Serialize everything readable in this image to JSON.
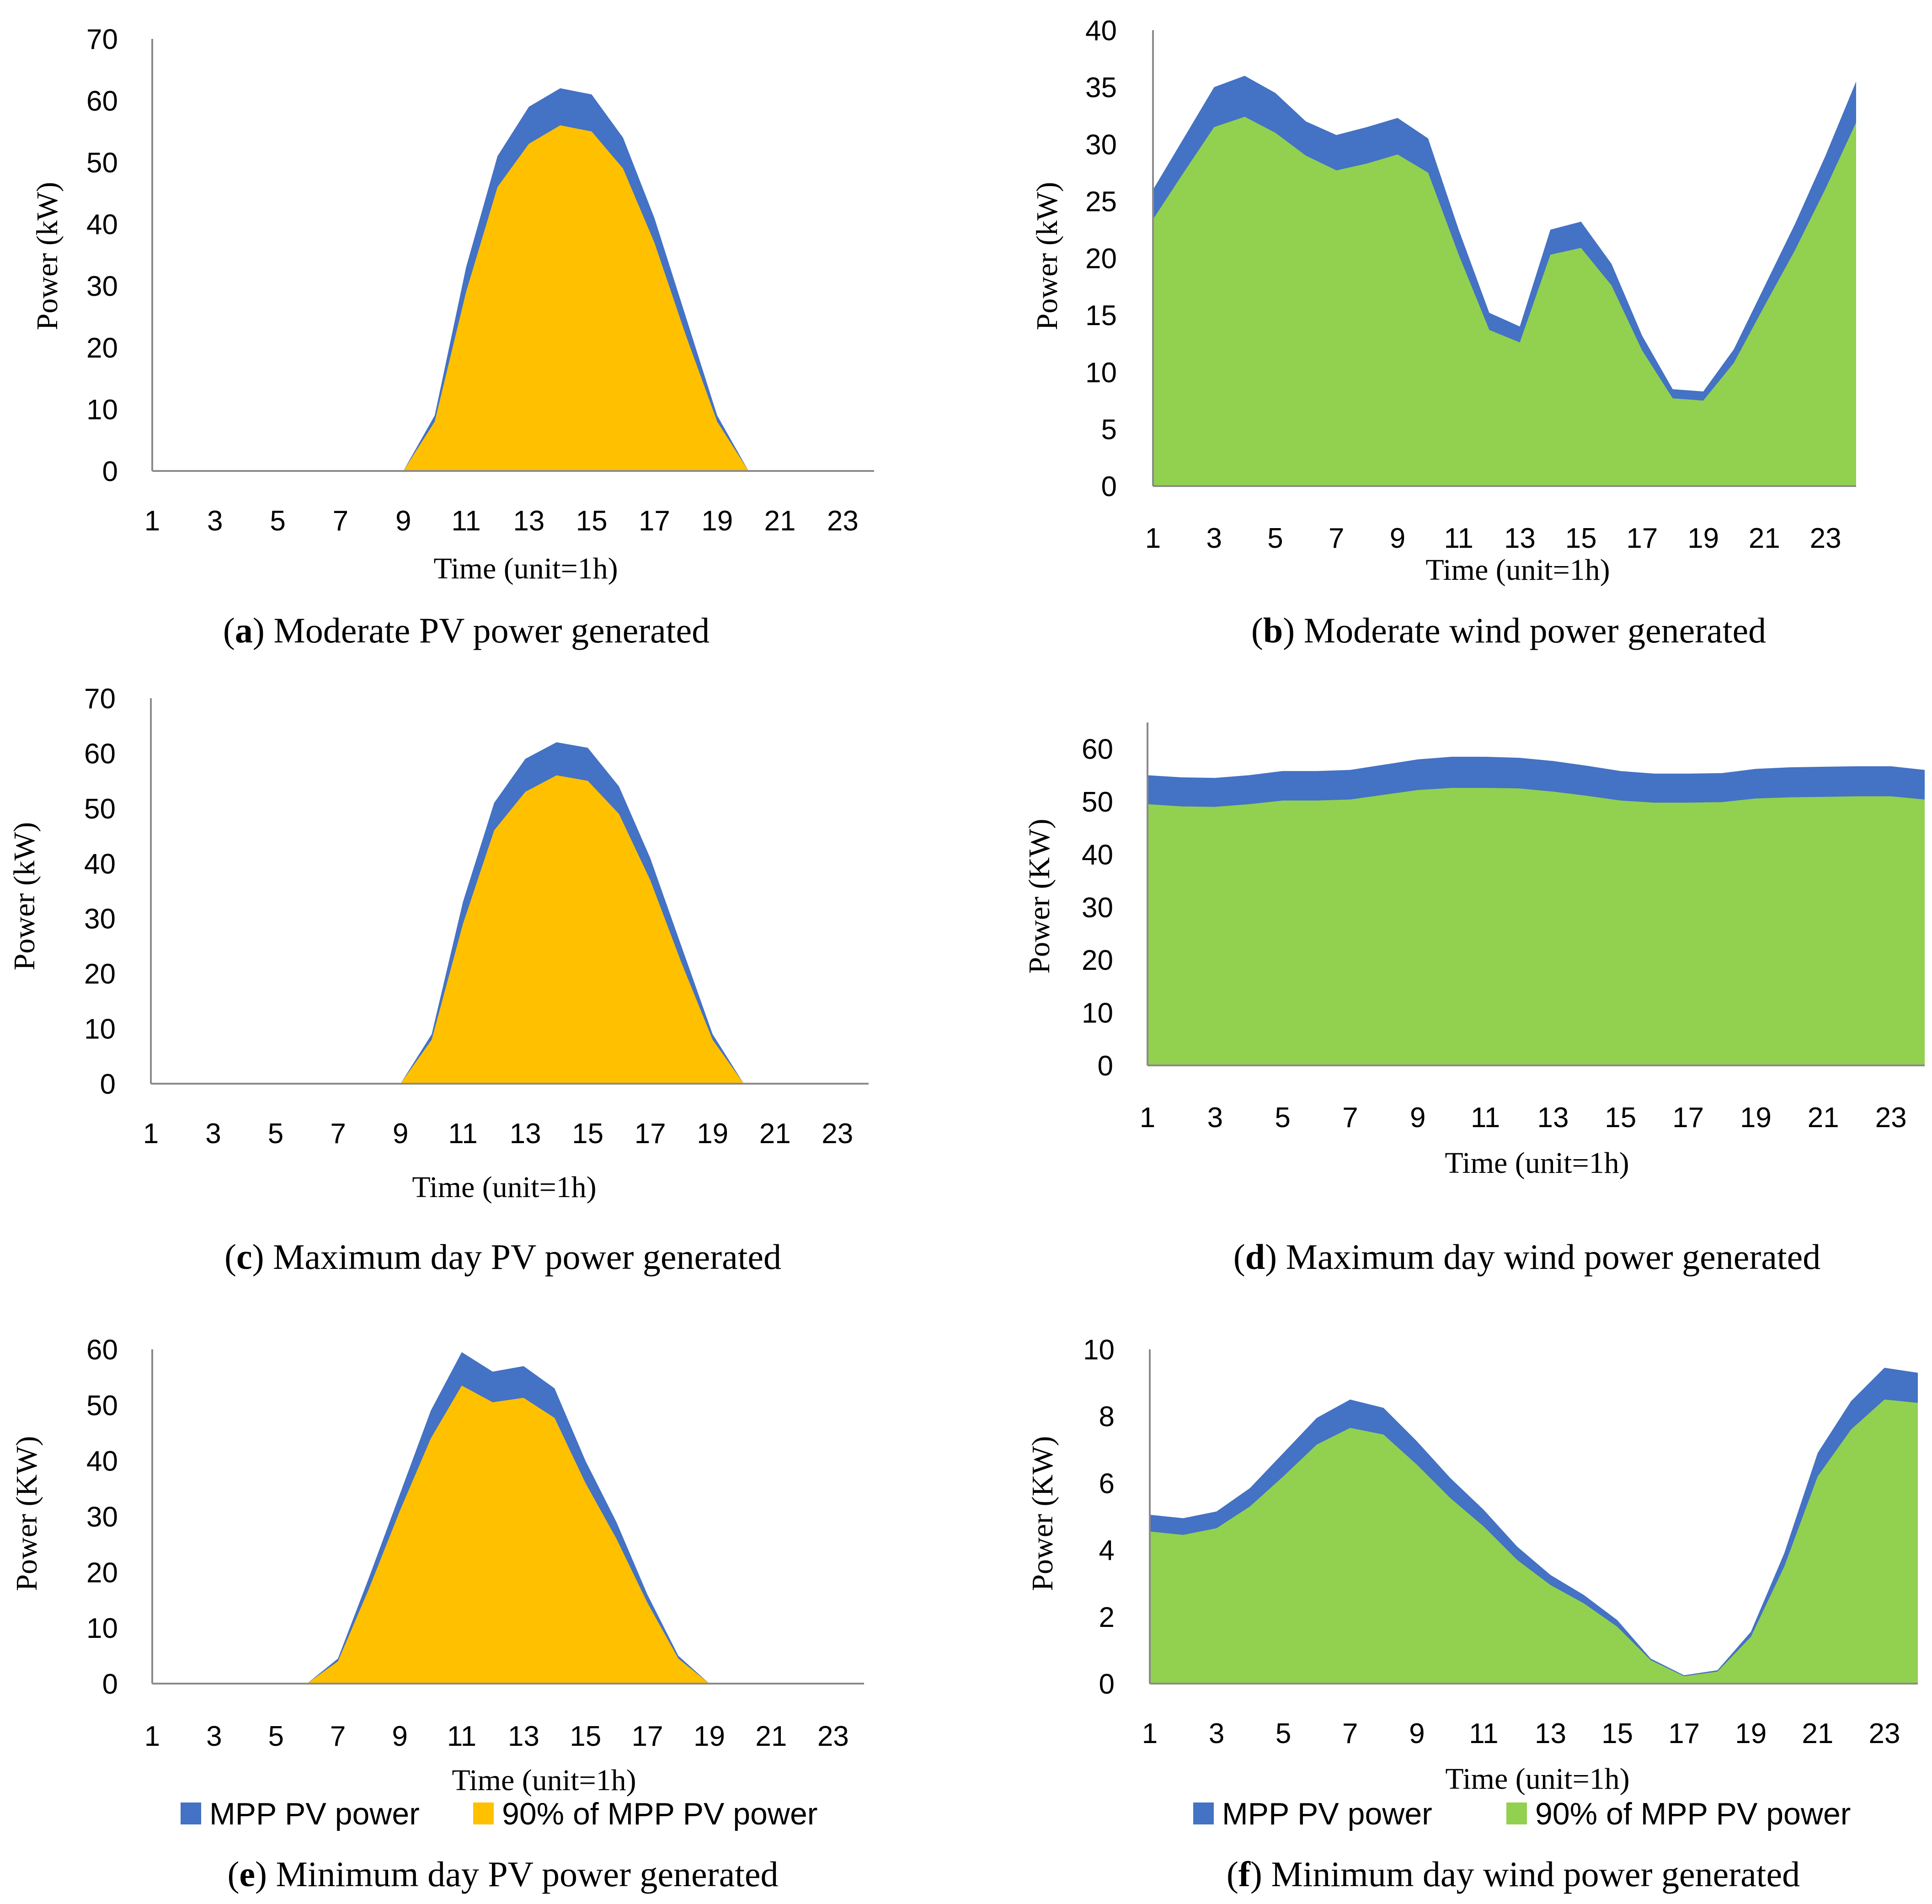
{
  "colors": {
    "mpp": "#4472c4",
    "pv_area": "#ffc000",
    "wind_area": "#92d050",
    "axis": "#8a8a8a"
  },
  "legend": {
    "mpp_label": "MPP PV power",
    "ninety_label": "90% of MPP PV power"
  },
  "chart_data": [
    {
      "id": "a",
      "type": "area",
      "caption_letter": "a",
      "caption_text": " Moderate PV power generated",
      "title": "",
      "xlabel": "Time (unit=1h)",
      "ylabel": "Power (kW)",
      "ylim": [
        0,
        70
      ],
      "yticks": [
        0,
        10,
        20,
        30,
        40,
        50,
        60,
        70
      ],
      "xticks": [
        1,
        3,
        5,
        7,
        9,
        11,
        13,
        15,
        17,
        19,
        21,
        23
      ],
      "x": [
        1,
        2,
        3,
        4,
        5,
        6,
        7,
        8,
        9,
        10,
        11,
        12,
        13,
        14,
        15,
        16,
        17,
        18,
        19,
        20,
        21,
        22,
        23,
        24
      ],
      "series": [
        {
          "name": "MPP PV power",
          "color": "mpp",
          "values": [
            0,
            0,
            0,
            0,
            0,
            0,
            0,
            0,
            0,
            9,
            33,
            51,
            59,
            62,
            61,
            54,
            41,
            25,
            9,
            0,
            0,
            0,
            0,
            0
          ]
        },
        {
          "name": "90% of MPP PV power",
          "color": "pv_area",
          "values": [
            0,
            0,
            0,
            0,
            0,
            0,
            0,
            0,
            0,
            8,
            29,
            46,
            53,
            56,
            55,
            49,
            37,
            22,
            8,
            0,
            0,
            0,
            0,
            0
          ]
        }
      ]
    },
    {
      "id": "b",
      "type": "area",
      "caption_letter": "b",
      "caption_text": " Moderate wind power generated",
      "title": "",
      "xlabel": "Time (unit=1h)",
      "ylabel": "Power (kW)",
      "ylim": [
        0,
        40
      ],
      "yticks": [
        0,
        5,
        10,
        15,
        20,
        25,
        30,
        35,
        40
      ],
      "xticks": [
        1,
        3,
        5,
        7,
        9,
        11,
        13,
        15,
        17,
        19,
        21,
        23
      ],
      "x": [
        1,
        2,
        3,
        4,
        5,
        6,
        7,
        8,
        9,
        10,
        11,
        12,
        13,
        14,
        15,
        16,
        17,
        18,
        19,
        20,
        21,
        22,
        23,
        24
      ],
      "series": [
        {
          "name": "MPP PV power",
          "color": "mpp",
          "values": [
            26,
            30.5,
            35,
            36,
            34.5,
            32,
            30.8,
            31.5,
            32.3,
            30.5,
            22.5,
            15.2,
            14,
            22.5,
            23.2,
            19.5,
            13.2,
            8.5,
            8.3,
            12,
            17.5,
            23,
            29,
            35.5
          ]
        },
        {
          "name": "90% of MPP PV power",
          "color": "wind_area",
          "values": [
            23.4,
            27.5,
            31.5,
            32.4,
            31,
            29,
            27.7,
            28.3,
            29.1,
            27.5,
            20.3,
            13.7,
            12.6,
            20.3,
            20.9,
            17.6,
            11.9,
            7.7,
            7.5,
            10.8,
            15.8,
            20.7,
            26.1,
            31.9
          ]
        }
      ]
    },
    {
      "id": "c",
      "type": "area",
      "caption_letter": "c",
      "caption_text": " Maximum day PV power generated",
      "title": "",
      "xlabel": "Time (unit=1h)",
      "ylabel": "Power (kW)",
      "ylim": [
        0,
        70
      ],
      "yticks": [
        0,
        10,
        20,
        30,
        40,
        50,
        60,
        70
      ],
      "xticks": [
        1,
        3,
        5,
        7,
        9,
        11,
        13,
        15,
        17,
        19,
        21,
        23
      ],
      "x": [
        1,
        2,
        3,
        4,
        5,
        6,
        7,
        8,
        9,
        10,
        11,
        12,
        13,
        14,
        15,
        16,
        17,
        18,
        19,
        20,
        21,
        22,
        23,
        24
      ],
      "series": [
        {
          "name": "MPP PV power",
          "color": "mpp",
          "values": [
            0,
            0,
            0,
            0,
            0,
            0,
            0,
            0,
            0,
            9,
            33,
            51,
            59,
            62,
            61,
            54,
            41,
            25,
            9,
            0,
            0,
            0,
            0,
            0
          ]
        },
        {
          "name": "90% of MPP PV power",
          "color": "pv_area",
          "values": [
            0,
            0,
            0,
            0,
            0,
            0,
            0,
            0,
            0,
            8,
            29,
            46,
            53,
            56,
            55,
            49,
            37,
            22,
            8,
            0,
            0,
            0,
            0,
            0
          ]
        }
      ]
    },
    {
      "id": "d",
      "type": "area",
      "caption_letter": "d",
      "caption_text": " Maximum day wind power generated",
      "title": "",
      "xlabel": "Time (unit=1h)",
      "ylabel": "Power (KW)",
      "ylim": [
        0,
        65
      ],
      "yticks": [
        0,
        10,
        20,
        30,
        40,
        50,
        60
      ],
      "xticks": [
        1,
        3,
        5,
        7,
        9,
        11,
        13,
        15,
        17,
        19,
        21,
        23
      ],
      "x": [
        1,
        2,
        3,
        4,
        5,
        6,
        7,
        8,
        9,
        10,
        11,
        12,
        13,
        14,
        15,
        16,
        17,
        18,
        19,
        20,
        21,
        22,
        23,
        24
      ],
      "series": [
        {
          "name": "MPP PV power",
          "color": "mpp",
          "values": [
            55,
            54.6,
            54.5,
            55,
            55.8,
            55.8,
            56,
            57,
            58,
            58.5,
            58.5,
            58.3,
            57.7,
            56.8,
            55.8,
            55.3,
            55.3,
            55.4,
            56.2,
            56.5,
            56.6,
            56.7,
            56.7,
            56
          ]
        },
        {
          "name": "90% of MPP PV power",
          "color": "wind_area",
          "values": [
            49.5,
            49.1,
            49,
            49.5,
            50.2,
            50.2,
            50.4,
            51.3,
            52.2,
            52.6,
            52.6,
            52.5,
            51.9,
            51.1,
            50.2,
            49.8,
            49.8,
            49.9,
            50.6,
            50.8,
            50.9,
            51,
            51,
            50.4
          ]
        }
      ]
    },
    {
      "id": "e",
      "type": "area",
      "caption_letter": "e",
      "caption_text": " Minimum day PV power generated",
      "title": "",
      "xlabel": "Time (unit=1h)",
      "ylabel": "Power (KW)",
      "ylim": [
        0,
        60
      ],
      "yticks": [
        0,
        10,
        20,
        30,
        40,
        50,
        60
      ],
      "xticks": [
        1,
        3,
        5,
        7,
        9,
        11,
        13,
        15,
        17,
        19,
        21,
        23
      ],
      "x": [
        1,
        2,
        3,
        4,
        5,
        6,
        7,
        8,
        9,
        10,
        11,
        12,
        13,
        14,
        15,
        16,
        17,
        18,
        19,
        20,
        21,
        22,
        23,
        24
      ],
      "series": [
        {
          "name": "MPP PV power",
          "color": "mpp",
          "values": [
            0,
            0,
            0,
            0,
            0,
            0,
            4.5,
            19,
            34,
            49,
            59.5,
            56,
            57,
            53,
            40,
            29,
            16,
            5,
            0,
            0,
            0,
            0,
            0,
            0
          ]
        },
        {
          "name": "90% of MPP PV power",
          "color": "pv_area",
          "values": [
            0,
            0,
            0,
            0,
            0,
            0,
            4,
            17,
            31,
            44,
            53.5,
            50.5,
            51.3,
            47.7,
            36,
            26,
            14.5,
            4.5,
            0,
            0,
            0,
            0,
            0,
            0
          ]
        }
      ]
    },
    {
      "id": "f",
      "type": "area",
      "caption_letter": "f",
      "caption_text": " Minimum day wind power generated",
      "title": "",
      "xlabel": "Time (unit=1h)",
      "ylabel": "Power (KW)",
      "ylim": [
        0,
        10
      ],
      "yticks": [
        0,
        2,
        4,
        6,
        8,
        10
      ],
      "xticks": [
        1,
        3,
        5,
        7,
        9,
        11,
        13,
        15,
        17,
        19,
        21,
        23
      ],
      "x": [
        1,
        2,
        3,
        4,
        5,
        6,
        7,
        8,
        9,
        10,
        11,
        12,
        13,
        14,
        15,
        16,
        17,
        18,
        19,
        20,
        21,
        22,
        23,
        24
      ],
      "series": [
        {
          "name": "MPP PV power",
          "color": "mpp",
          "values": [
            5.05,
            4.95,
            5.15,
            5.85,
            6.9,
            7.95,
            8.5,
            8.25,
            7.25,
            6.15,
            5.2,
            4.1,
            3.25,
            2.65,
            1.9,
            0.75,
            0.25,
            0.4,
            1.55,
            3.9,
            6.9,
            8.45,
            9.45,
            9.3
          ]
        },
        {
          "name": "90% of MPP PV power",
          "color": "wind_area",
          "values": [
            4.55,
            4.45,
            4.65,
            5.3,
            6.2,
            7.15,
            7.65,
            7.45,
            6.55,
            5.55,
            4.7,
            3.7,
            2.95,
            2.4,
            1.7,
            0.7,
            0.22,
            0.36,
            1.4,
            3.5,
            6.2,
            7.6,
            8.5,
            8.4
          ]
        }
      ]
    }
  ]
}
